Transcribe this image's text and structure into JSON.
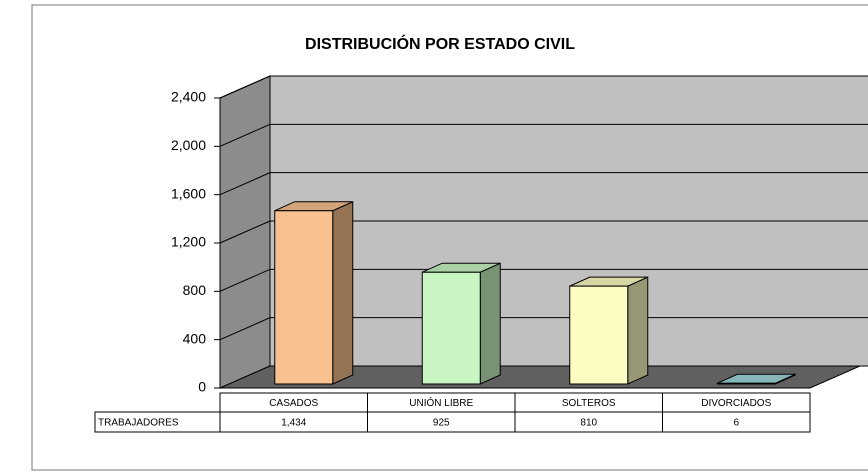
{
  "chart_data": {
    "type": "bar3d",
    "title": "DISTRIBUCIÓN POR ESTADO CIVIL",
    "categories": [
      "CASADOS",
      "UNIÓN LIBRE",
      "SOLTEROS",
      "DIVORCIADOS"
    ],
    "series": [
      {
        "name": "TRABAJADORES",
        "colors": [
          "#f9c190",
          "#c8f5c2",
          "#fdfcc2",
          "#9fd6d8"
        ],
        "values": [
          1434,
          925,
          810,
          6
        ],
        "value_labels": [
          "1,434",
          "925",
          "810",
          "6"
        ]
      }
    ],
    "ylim": [
      0,
      2400
    ],
    "yticks": [
      0,
      400,
      800,
      {
        "value": 1200,
        "label": "1,200"
      },
      {
        "value": 1600,
        "label": "1,600"
      },
      {
        "value": 2000,
        "label": "2,000"
      },
      {
        "value": 2400,
        "label": "2,400"
      }
    ],
    "grid": true
  }
}
